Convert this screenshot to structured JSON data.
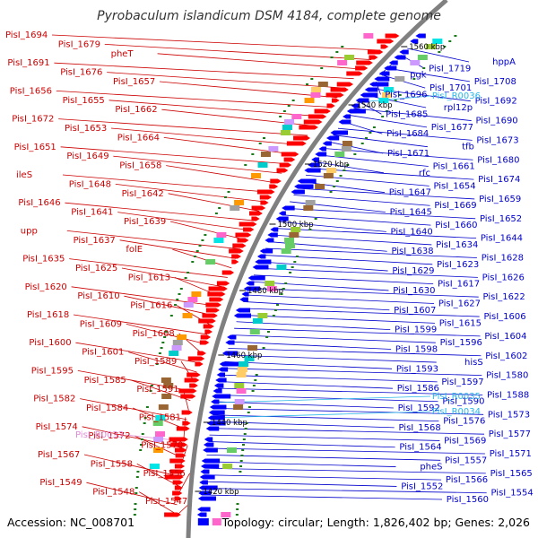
{
  "title": "Pyrobaculum islandicum DSM 4184, complete genome",
  "accession": "Accession: NC_008701",
  "topology": "Topology: circular; Length: 1,826,402 bp; Genes: 2,026",
  "colors": {
    "forward_label": "#cc0000",
    "reverse_label": "#0000cc",
    "rna_forward_label": "#e08ad8",
    "rna_reverse_label": "#29b6e8",
    "forward_gene": "#ff0000",
    "reverse_gene": "#0000ff",
    "backbone": "#808080",
    "tick": "#1a7a1a"
  },
  "kbp_ticks": [
    "1560 kbp",
    "1540 kbp",
    "1520 kbp",
    "1500 kbp",
    "1480 kbp",
    "1460 kbp",
    "1440 kbp",
    "1420 kbp"
  ],
  "left_labels": [
    "PisI_1694",
    "PisI_1679",
    "pheT",
    "PisI_1691",
    "PisI_1676",
    "PisI_1657",
    "PisI_1656",
    "PisI_1655",
    "PisI_1662",
    "PisI_1672",
    "PisI_1653",
    "PisI_1664",
    "PisI_1651",
    "PisI_1649",
    "PisI_1658",
    "ileS",
    "PisI_1648",
    "PisI_1642",
    "PisI_1646",
    "PisI_1641",
    "PisI_1639",
    "upp",
    "PisI_1637",
    "folE",
    "PisI_1635",
    "PisI_1625",
    "PisI_1613",
    "PisI_1620",
    "PisI_1610",
    "PisI_1616",
    "PisI_1618",
    "PisI_1609",
    "PisI_1608",
    "PisI_1600",
    "PisI_1601",
    "PisI_1589",
    "PisI_1595",
    "PisI_1585",
    "PisI_1591",
    "PisI_1582",
    "PisI_1584",
    "PisI_1581",
    "PisI_1574",
    "PisI_1572",
    "PisI_1570",
    "PisI_1567",
    "PisI_1558",
    "PisI_1556",
    "PisI_1549",
    "PisI_1548",
    "PisI_1547"
  ],
  "left_rna_labels": [
    "PisI_R0033"
  ],
  "right_labels": [
    "hppA",
    "PisI_1719",
    "pgk",
    "PisI_1708",
    "PisI_1701",
    "PisI_1696",
    "PisI_1692",
    "rpl12p",
    "PisI_1685",
    "PisI_1690",
    "PisI_1677",
    "PisI_1684",
    "PisI_1673",
    "tfb",
    "PisI_1671",
    "PisI_1680",
    "PisI_1661",
    "rfc",
    "PisI_1674",
    "PisI_1654",
    "PisI_1647",
    "PisI_1659",
    "PisI_1669",
    "PisI_1645",
    "PisI_1652",
    "PisI_1660",
    "PisI_1640",
    "PisI_1644",
    "PisI_1634",
    "PisI_1638",
    "PisI_1628",
    "PisI_1623",
    "PisI_1629",
    "PisI_1626",
    "PisI_1617",
    "PisI_1630",
    "PisI_1622",
    "PisI_1627",
    "PisI_1607",
    "PisI_1606",
    "PisI_1615",
    "PisI_1599",
    "PisI_1604",
    "PisI_1596",
    "PisI_1598",
    "PisI_1602",
    "hisS",
    "PisI_1593",
    "PisI_1580",
    "PisI_1597",
    "PisI_1586",
    "PisI_1588",
    "PisI_1590",
    "PisI_1592",
    "PisI_1573",
    "PisI_1576",
    "PisI_1568",
    "PisI_1577",
    "PisI_1569",
    "PisI_1564",
    "PisI_1571",
    "PisI_1557",
    "pheS",
    "PisI_1565",
    "PisI_1566",
    "PisI_1552",
    "PisI_1554",
    "PisI_1560"
  ],
  "right_rna_labels": [
    "PisI_R0036",
    "PisI_R0035",
    "PisI_R0034"
  ]
}
